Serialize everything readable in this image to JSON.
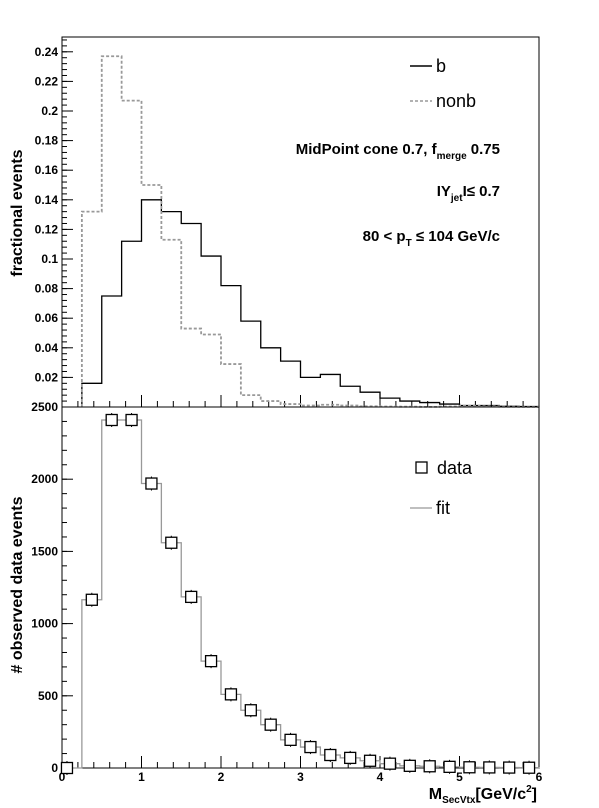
{
  "chart_data": [
    {
      "type": "line",
      "panel": "top",
      "ylabel": "fractional events",
      "xlim": [
        0,
        6
      ],
      "ylim": [
        0,
        0.25
      ],
      "yticks": [
        0.02,
        0.04,
        0.06,
        0.08,
        0.1,
        0.12,
        0.14,
        0.16,
        0.18,
        0.2,
        0.22,
        0.24
      ],
      "ytick_labels": [
        "0.02",
        "0.04",
        "0.06",
        "0.08",
        "0.1",
        "0.12",
        "0.14",
        "0.16",
        "0.18",
        "0.2",
        "0.22",
        "0.24"
      ],
      "bin_edges": [
        0.25,
        0.5,
        0.75,
        1.0,
        1.25,
        1.5,
        1.75,
        2.0,
        2.25,
        2.5,
        2.75,
        3.0,
        3.25,
        3.5,
        3.75,
        4.0,
        4.25,
        4.5,
        4.75,
        5.0,
        5.25,
        5.5,
        5.75,
        6.0
      ],
      "series": [
        {
          "name": "b",
          "style": "solid",
          "color": "#000000",
          "values": [
            0.016,
            0.075,
            0.112,
            0.14,
            0.132,
            0.124,
            0.102,
            0.082,
            0.058,
            0.04,
            0.031,
            0.02,
            0.022,
            0.014,
            0.01,
            0.006,
            0.004,
            0.003,
            0.002,
            0.001,
            0.001,
            0.0005,
            0.0003
          ]
        },
        {
          "name": "nonb",
          "style": "dashed",
          "color": "#999999",
          "values": [
            0.132,
            0.237,
            0.207,
            0.15,
            0.113,
            0.053,
            0.049,
            0.029,
            0.008,
            0.004,
            0.002,
            0.001,
            0.0015,
            0.001,
            0.0005,
            0.0003,
            0.0002,
            0.0001,
            0.0003,
            0.0008,
            0.0005,
            0.0002,
            0.0001
          ]
        }
      ],
      "annotations": {
        "line1_main": "MidPoint cone 0.7, f",
        "line1_sub": "merge",
        "line1_tail": " 0.75",
        "line2_main": "IY",
        "line2_sub": "jet",
        "line2_tail": "I≤ 0.7",
        "line3_main": "80 < p",
        "line3_sub": "T",
        "line3_tail": " ≤ 104 GeV/c"
      }
    },
    {
      "type": "scatter",
      "panel": "bottom",
      "ylabel": "# observed data events",
      "xlabel_main": "M",
      "xlabel_sub": "SecVtx",
      "xlabel_tail": "[GeV/c",
      "xlabel_sup": "2",
      "xlabel_close": "]",
      "xlim": [
        0,
        6
      ],
      "ylim": [
        0,
        2500
      ],
      "xticks": [
        0,
        1,
        2,
        3,
        4,
        5,
        6
      ],
      "xtick_labels": [
        "0",
        "1",
        "2",
        "3",
        "4",
        "5",
        "6"
      ],
      "yticks": [
        0,
        500,
        1000,
        1500,
        2000,
        2500
      ],
      "ytick_labels": [
        "0",
        "500",
        "1000",
        "1500",
        "2000",
        "2500"
      ],
      "bin_edges": [
        0.0,
        0.25,
        0.5,
        0.75,
        1.0,
        1.25,
        1.5,
        1.75,
        2.0,
        2.25,
        2.5,
        2.75,
        3.0,
        3.25,
        3.5,
        3.75,
        4.0,
        4.25,
        4.5,
        4.75,
        5.0,
        5.25,
        5.5,
        5.75,
        6.0
      ],
      "series": [
        {
          "name": "data",
          "marker": "open-square",
          "color": "#000000",
          "x": [
            0.0625,
            0.375,
            0.625,
            0.875,
            1.125,
            1.375,
            1.625,
            1.875,
            2.125,
            2.375,
            2.625,
            2.875,
            3.125,
            3.375,
            3.625,
            3.875,
            4.125,
            4.375,
            4.625,
            4.875,
            5.125,
            5.375,
            5.625,
            5.875
          ],
          "values": [
            0,
            1165,
            2410,
            2410,
            1970,
            1560,
            1185,
            740,
            510,
            400,
            300,
            195,
            145,
            90,
            70,
            50,
            30,
            15,
            12,
            8,
            5,
            4,
            3,
            2
          ]
        },
        {
          "name": "fit",
          "style": "solid",
          "color": "#999999",
          "values": [
            0,
            1165,
            2410,
            2410,
            1970,
            1560,
            1185,
            740,
            510,
            400,
            300,
            195,
            145,
            90,
            70,
            50,
            30,
            15,
            12,
            8,
            5,
            4,
            3,
            2
          ]
        }
      ]
    }
  ]
}
